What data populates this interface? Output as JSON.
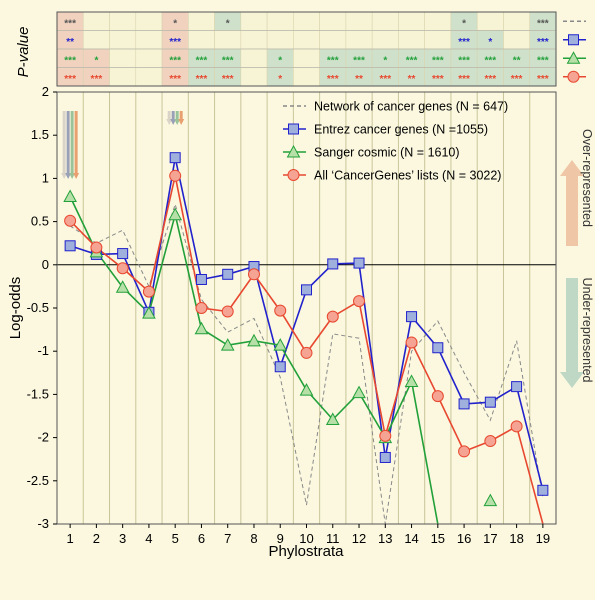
{
  "chart_data": {
    "type": "line",
    "xlabel": "Phylostrata",
    "ylabel": "Log-odds",
    "pvalue_label": "P-value",
    "side_labels": {
      "over": "Over-represented",
      "under": "Under-represented"
    },
    "x": [
      1,
      2,
      3,
      4,
      5,
      6,
      7,
      8,
      9,
      10,
      11,
      12,
      13,
      14,
      15,
      16,
      17,
      18,
      19
    ],
    "xlim": [
      0.5,
      19.5
    ],
    "ylim": [
      -3,
      2
    ],
    "yticks": [
      "2",
      "1.5",
      "1",
      "0.5",
      "0",
      "-0.5",
      "-1",
      "-1.5",
      "-2",
      "-2.5",
      "-3"
    ],
    "series": [
      {
        "name": "Network of cancer genes (N = 647)",
        "color": "#888888",
        "marker": "none",
        "dash": true,
        "values": [
          0.45,
          0.25,
          0.4,
          -0.25,
          0.7,
          -0.4,
          -0.78,
          -0.62,
          -1.3,
          -2.78,
          -0.8,
          -0.85,
          -3.05,
          -1.0,
          -0.65,
          -1.25,
          -1.8,
          -0.88,
          -2.7
        ]
      },
      {
        "name": "Entrez cancer genes (N =1055)",
        "color": "#2222cc",
        "marker": "square",
        "values": [
          0.22,
          0.12,
          0.13,
          -0.55,
          1.24,
          -0.17,
          -0.11,
          -0.02,
          -1.18,
          -0.29,
          0.01,
          0.02,
          -2.23,
          -0.6,
          -0.96,
          -1.61,
          -1.59,
          -1.41,
          -2.61
        ]
      },
      {
        "name": "Sanger cosmic (N = 1610)",
        "color": "#22a03a",
        "marker": "triangle",
        "values": [
          0.79,
          0.15,
          -0.26,
          -0.56,
          0.58,
          -0.74,
          -0.93,
          -0.88,
          -0.93,
          -1.45,
          -1.79,
          -1.48,
          -2.0,
          -1.35,
          -3.1,
          null,
          -2.73,
          null,
          null
        ]
      },
      {
        "name": "All ‘CancerGenes’ lists (N = 3022)",
        "color": "#e84830",
        "marker": "circle",
        "values": [
          0.51,
          0.2,
          -0.04,
          -0.31,
          1.03,
          -0.5,
          -0.54,
          -0.11,
          -0.53,
          -1.02,
          -0.6,
          -0.42,
          -1.98,
          -0.9,
          -1.52,
          -2.16,
          -2.04,
          -1.87,
          -3.05
        ]
      }
    ],
    "pvalues": [
      [
        "***",
        "",
        "",
        "",
        "*",
        "",
        "*",
        "",
        "",
        "",
        "",
        "",
        "",
        "",
        "",
        "*",
        "",
        "",
        "***"
      ],
      [
        "**",
        "",
        "",
        "",
        "***",
        "",
        "",
        "",
        "",
        "",
        "",
        "",
        "",
        "",
        "",
        "***",
        "*",
        "",
        "***"
      ],
      [
        "***",
        "*",
        "",
        "",
        "***",
        "***",
        "***",
        "",
        "*",
        "",
        "***",
        "***",
        "*",
        "***",
        "***",
        "***",
        "***",
        "**",
        "***"
      ],
      [
        "***",
        "***",
        "",
        "",
        "***",
        "***",
        "***",
        "",
        "*",
        "",
        "***",
        "**",
        "***",
        "**",
        "***",
        "***",
        "***",
        "***",
        "***"
      ]
    ],
    "arrows_at": [
      1,
      5
    ],
    "grid": "vertical",
    "legend": "top-right"
  }
}
